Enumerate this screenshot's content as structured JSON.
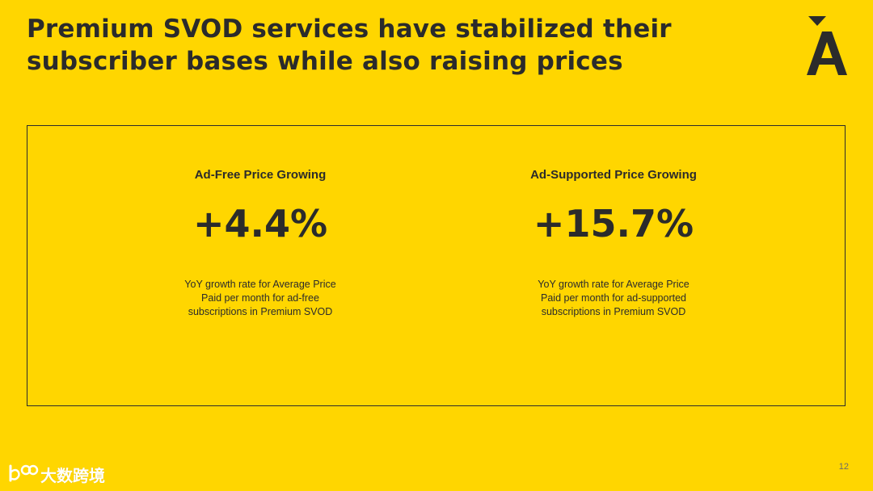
{
  "slide": {
    "title_line1": "Premium SVOD services have stabilized their",
    "title_line2": "subscriber bases while also raising prices",
    "logo_icon": "a-caron-logo-icon",
    "page_number": "12"
  },
  "metrics": [
    {
      "heading": "Ad-Free Price Growing",
      "value": "+4.4%",
      "description_lines": [
        "YoY growth rate for Average Price",
        "Paid per month for ad-free",
        "subscriptions in Premium SVOD"
      ]
    },
    {
      "heading": "Ad-Supported Price Growing",
      "value": "+15.7%",
      "description_lines": [
        "YoY growth rate for Average Price",
        "Paid per month for ad-supported",
        "subscriptions in Premium SVOD"
      ]
    }
  ],
  "watermark": {
    "text": "大数跨境",
    "logo_icon": "100-logo-icon"
  },
  "colors": {
    "background": "#FFD600",
    "text": "#2B2B2B"
  }
}
